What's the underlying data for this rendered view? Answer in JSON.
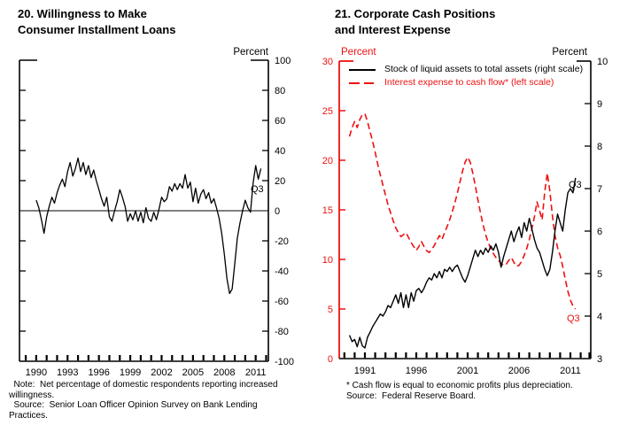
{
  "colors": {
    "red": "#ee1111",
    "black": "#000000",
    "background": "#ffffff"
  },
  "chart_data": [
    {
      "type": "line",
      "title": "20. Willingness to Make Consumer Installment Loans",
      "title_lines": [
        "20. Willingness to Make",
        "Consumer Installment Loans"
      ],
      "y_axis": {
        "label": "Percent",
        "side": "right",
        "min": -100,
        "max": 100,
        "tick_step": 20,
        "labels": [
          100,
          80,
          60,
          40,
          20,
          0,
          -20,
          -40,
          -60,
          -80,
          -100
        ]
      },
      "x_axis": {
        "tick_years_from": 1989,
        "tick_years_to": 2012,
        "label_years": [
          1990,
          1993,
          1996,
          1999,
          2002,
          2005,
          2008,
          2011
        ]
      },
      "zero_line": true,
      "end_label": "Q3",
      "series": [
        {
          "name": "Net percentage reporting increased willingness",
          "color": "#000000",
          "line_style": "solid",
          "x_start": 1990.0,
          "x_step": 0.25,
          "values": [
            7,
            2,
            -6,
            -15,
            -4,
            3,
            9,
            5,
            12,
            17,
            21,
            16,
            26,
            32,
            23,
            28,
            35,
            26,
            32,
            24,
            30,
            22,
            27,
            20,
            14,
            8,
            3,
            9,
            -4,
            -7,
            0,
            6,
            14,
            9,
            3,
            -7,
            -2,
            -6,
            0,
            -7,
            -1,
            -8,
            2,
            -5,
            -7,
            -1,
            -6,
            1,
            9,
            6,
            8,
            16,
            13,
            18,
            14,
            18,
            15,
            24,
            15,
            19,
            6,
            15,
            5,
            11,
            14,
            8,
            12,
            5,
            8,
            2,
            -5,
            -15,
            -29,
            -45,
            -55,
            -52,
            -35,
            -18,
            -8,
            0,
            7,
            2,
            -1,
            18,
            30,
            21,
            28
          ]
        }
      ],
      "note_lines": [
        "  Note:  Net percentage of domestic respondents reporting increased",
        "willingness.",
        "  Source:  Senior Loan Officer Opinion Survey on Bank Lending",
        "Practices."
      ]
    },
    {
      "type": "line",
      "title": "21. Corporate Cash Positions and Interest Expense",
      "title_lines": [
        "21. Corporate Cash Positions",
        "and Interest Expense"
      ],
      "left_axis": {
        "label": "Percent",
        "color": "#ee1111",
        "min": 0,
        "max": 30,
        "tick_step": 5,
        "labels": [
          30,
          25,
          20,
          15,
          10,
          5,
          0
        ]
      },
      "right_axis": {
        "label": "Percent",
        "color": "#000000",
        "min": 3,
        "max": 10,
        "tick_step": 1,
        "labels": [
          10,
          9,
          8,
          7,
          6,
          5,
          4,
          3
        ]
      },
      "x_axis": {
        "tick_years_from": 1989,
        "tick_years_to": 2013,
        "label_years": [
          1991,
          1996,
          2001,
          2006,
          2011
        ]
      },
      "series": [
        {
          "name": "Stock of liquid assets to total assets",
          "legend": "Stock of liquid assets to total assets (right scale)",
          "scale": "right",
          "color": "#000000",
          "line_style": "solid",
          "end_label": "Q3",
          "x_start": 1989.5,
          "x_step": 0.25,
          "values": [
            3.55,
            3.4,
            3.45,
            3.28,
            3.5,
            3.3,
            3.25,
            3.5,
            3.62,
            3.75,
            3.85,
            3.95,
            4.05,
            4.0,
            4.1,
            4.25,
            4.2,
            4.35,
            4.5,
            4.3,
            4.55,
            4.2,
            4.5,
            4.2,
            4.55,
            4.35,
            4.6,
            4.65,
            4.55,
            4.65,
            4.8,
            4.9,
            4.85,
            5.0,
            4.9,
            5.05,
            4.9,
            5.1,
            5.05,
            5.15,
            5.05,
            5.15,
            5.2,
            5.05,
            4.9,
            4.8,
            4.95,
            5.15,
            5.35,
            5.55,
            5.4,
            5.55,
            5.45,
            5.6,
            5.5,
            5.65,
            5.55,
            5.7,
            5.5,
            5.15,
            5.4,
            5.6,
            5.8,
            6.0,
            5.75,
            5.95,
            6.1,
            5.85,
            6.2,
            6.0,
            6.3,
            6.05,
            5.8,
            5.6,
            5.5,
            5.3,
            5.1,
            4.95,
            5.1,
            5.5,
            6.0,
            6.4,
            6.2,
            6.0,
            6.5,
            6.9,
            7.0,
            6.9,
            7.25
          ]
        },
        {
          "name": "Interest expense to cash flow",
          "legend": "Interest expense to cash flow* (left scale)",
          "scale": "left",
          "color": "#ee1111",
          "line_style": "dashed",
          "end_label": "Q3",
          "x_start": 1989.5,
          "x_step": 0.25,
          "values": [
            22.4,
            23.3,
            23.9,
            23.3,
            24.1,
            24.6,
            24.7,
            23.9,
            22.9,
            21.9,
            20.8,
            19.6,
            18.5,
            17.5,
            16.5,
            15.5,
            14.7,
            13.9,
            13.2,
            12.7,
            12.3,
            12.5,
            12.7,
            12.2,
            11.7,
            11.3,
            10.9,
            11.3,
            11.8,
            11.3,
            10.9,
            10.7,
            11.0,
            11.4,
            11.9,
            12.4,
            12.0,
            12.7,
            13.3,
            14.0,
            14.8,
            15.7,
            16.7,
            17.8,
            18.9,
            19.8,
            20.3,
            19.8,
            18.7,
            17.4,
            16.0,
            14.7,
            13.5,
            12.5,
            11.7,
            11.1,
            10.6,
            10.2,
            9.9,
            9.6,
            9.4,
            9.5,
            9.9,
            10.2,
            9.7,
            9.3,
            9.4,
            9.8,
            10.4,
            11.1,
            12.0,
            13.1,
            14.3,
            15.8,
            14.9,
            14.0,
            16.8,
            18.7,
            16.9,
            14.4,
            12.4,
            11.2,
            10.4,
            9.3,
            8.0,
            6.8,
            5.9,
            5.3,
            5.0
          ]
        }
      ],
      "note_lines": [
        "* Cash flow is equal to economic profits plus depreciation.",
        "Source:  Federal Reserve Board."
      ]
    }
  ]
}
